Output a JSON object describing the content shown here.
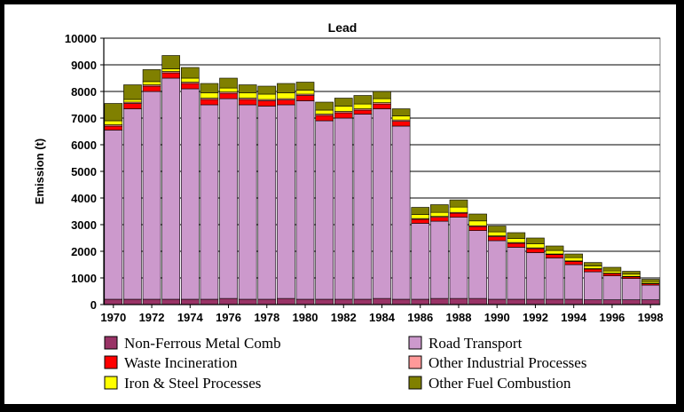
{
  "chart_data": {
    "type": "bar",
    "stacked": true,
    "title": "Lead",
    "xlabel": "",
    "ylabel": "Emission (t)",
    "ylim": [
      0,
      10000
    ],
    "yticks": [
      0,
      1000,
      2000,
      3000,
      4000,
      5000,
      6000,
      7000,
      8000,
      9000,
      10000
    ],
    "x_tick_labels": [
      "1970",
      "1972",
      "1974",
      "1976",
      "1978",
      "1980",
      "1982",
      "1984",
      "1986",
      "1988",
      "1990",
      "1992",
      "1994",
      "1996",
      "1998"
    ],
    "grid": "horizontal",
    "legend_position": "bottom",
    "categories": [
      "1970",
      "1971",
      "1972",
      "1973",
      "1974",
      "1975",
      "1976",
      "1977",
      "1978",
      "1979",
      "1980",
      "1981",
      "1982",
      "1983",
      "1984",
      "1985",
      "1986",
      "1987",
      "1988",
      "1989",
      "1990",
      "1991",
      "1992",
      "1993",
      "1994",
      "1995",
      "1996",
      "1997",
      "1998"
    ],
    "series": [
      {
        "name": "Non-Ferrous Metal Comb",
        "color": "#993366",
        "values": [
          200,
          200,
          200,
          200,
          200,
          200,
          230,
          200,
          200,
          230,
          200,
          200,
          200,
          200,
          230,
          200,
          200,
          230,
          230,
          230,
          200,
          200,
          200,
          200,
          200,
          180,
          180,
          180,
          180
        ]
      },
      {
        "name": "Road Transport",
        "color": "#cc99cc",
        "values": [
          6350,
          7150,
          7800,
          8300,
          7900,
          7300,
          7500,
          7300,
          7250,
          7270,
          7450,
          6700,
          6800,
          6950,
          7120,
          6500,
          2850,
          2900,
          3050,
          2550,
          2200,
          1950,
          1750,
          1550,
          1300,
          1050,
          900,
          800,
          550
        ]
      },
      {
        "name": "Waste Incineration",
        "color": "#ff0000",
        "values": [
          150,
          200,
          200,
          200,
          200,
          200,
          200,
          200,
          200,
          180,
          200,
          200,
          200,
          150,
          180,
          180,
          150,
          150,
          150,
          150,
          150,
          150,
          150,
          130,
          120,
          100,
          80,
          60,
          50
        ]
      },
      {
        "name": "Other Industrial Processes",
        "color": "#ff9999",
        "values": [
          50,
          50,
          50,
          50,
          50,
          50,
          50,
          50,
          50,
          50,
          50,
          50,
          50,
          50,
          50,
          50,
          30,
          30,
          30,
          30,
          30,
          30,
          30,
          20,
          20,
          20,
          20,
          20,
          20
        ]
      },
      {
        "name": "Iron & Steel Processes",
        "color": "#ffff00",
        "values": [
          150,
          100,
          120,
          100,
          150,
          200,
          150,
          200,
          200,
          220,
          150,
          150,
          200,
          180,
          150,
          150,
          150,
          150,
          200,
          180,
          150,
          150,
          150,
          130,
          120,
          100,
          80,
          80,
          60
        ]
      },
      {
        "name": "Other Fuel Combustion",
        "color": "#808000",
        "values": [
          650,
          550,
          450,
          500,
          400,
          350,
          370,
          300,
          300,
          350,
          300,
          300,
          300,
          320,
          270,
          270,
          270,
          290,
          270,
          260,
          220,
          220,
          220,
          170,
          140,
          130,
          140,
          110,
          90
        ]
      }
    ]
  }
}
